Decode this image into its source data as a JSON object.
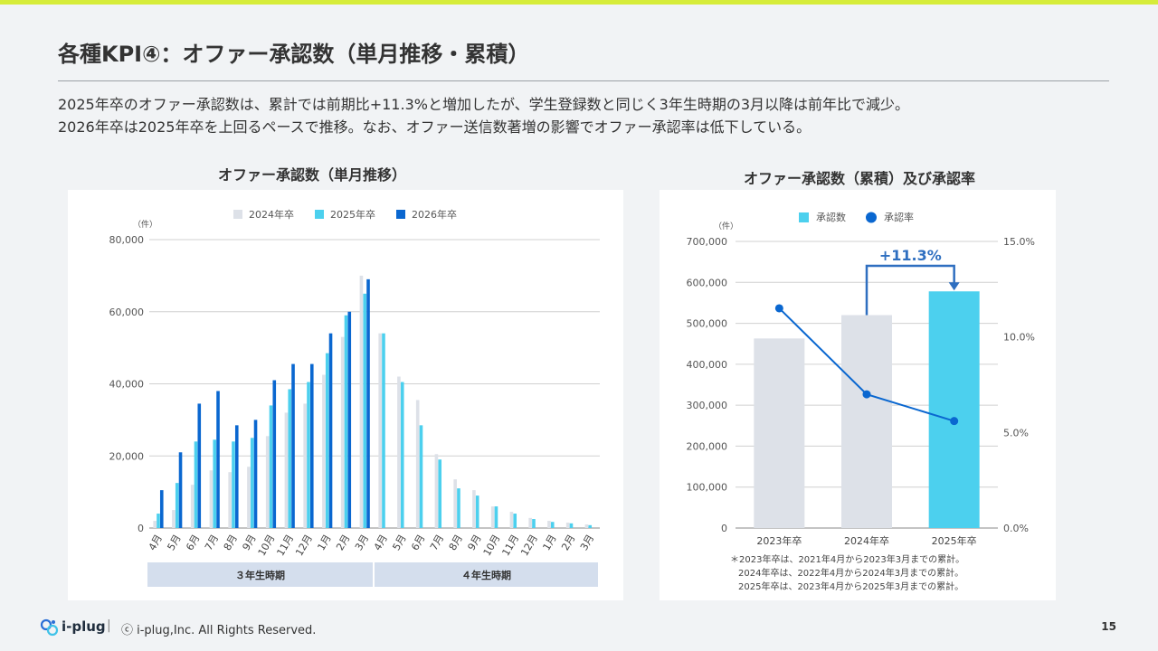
{
  "slide": {
    "title": "各種KPI④：オファー承認数（単月推移・累積）",
    "description": [
      "2025年卒のオファー承認数は、累計では前期比+11.3%と増加したが、学生登録数と同じく3年生時期の3月以降は前年比で減少。",
      "2026年卒は2025年卒を上回るペースで推移。なお、オファー送信数著増の影響でオファー承認率は低下している。"
    ],
    "left_chart_heading": "オファー承認数（単月推移）",
    "right_chart_heading": "オファー承認数（累積）及び承認率",
    "footer": {
      "brand": "i-plug",
      "separator": "|",
      "copyright": "ⓒ i-plug,Inc. All Rights Reserved.",
      "page": "15"
    },
    "colors": {
      "accent_bar": "#d6ec3a",
      "s2024": "#dde1e8",
      "s2025": "#4cd0ee",
      "s2026": "#0a67d0",
      "period_band": "#d4deed"
    }
  },
  "chart_data": [
    {
      "type": "bar",
      "ylabel": "（件）",
      "ylim": [
        0,
        80000
      ],
      "yticks": [
        "0",
        "20,000",
        "40,000",
        "60,000",
        "80,000"
      ],
      "ytick_values": [
        0,
        20000,
        40000,
        60000,
        80000
      ],
      "categories": [
        "4月",
        "5月",
        "6月",
        "7月",
        "8月",
        "9月",
        "10月",
        "11月",
        "12月",
        "1月",
        "2月",
        "3月",
        "4月",
        "5月",
        "6月",
        "7月",
        "8月",
        "9月",
        "10月",
        "11月",
        "12月",
        "1月",
        "2月",
        "3月"
      ],
      "series": [
        {
          "name": "2024年卒",
          "color": "#dde1e8",
          "values": [
            2000,
            5000,
            12000,
            16000,
            15500,
            17000,
            25500,
            32000,
            34500,
            42500,
            53000,
            70000,
            54000,
            42000,
            35500,
            20500,
            13500,
            10500,
            6000,
            4500,
            2800,
            2000,
            1500,
            1000
          ]
        },
        {
          "name": "2025年卒",
          "color": "#4cd0ee",
          "values": [
            4000,
            12500,
            24000,
            24500,
            24000,
            25000,
            34000,
            38500,
            40500,
            48500,
            59000,
            65000,
            54000,
            40500,
            28500,
            19000,
            11000,
            9000,
            6000,
            4000,
            2500,
            1700,
            1300,
            800
          ]
        },
        {
          "name": "2026年卒",
          "color": "#0a67d0",
          "values": [
            10500,
            21000,
            34500,
            38000,
            28500,
            30000,
            41000,
            45500,
            45500,
            54000,
            60000,
            69000,
            null,
            null,
            null,
            null,
            null,
            null,
            null,
            null,
            null,
            null,
            null,
            null
          ]
        }
      ],
      "periods": [
        {
          "label": "３年生時期",
          "from": 0,
          "to": 11
        },
        {
          "label": "４年生時期",
          "from": 12,
          "to": 23
        }
      ],
      "legend": "top"
    },
    {
      "type": "bar",
      "ylabel": "（件）",
      "ylim": [
        0,
        700000
      ],
      "yticks": [
        "0",
        "100,000",
        "200,000",
        "300,000",
        "400,000",
        "500,000",
        "600,000",
        "700,000"
      ],
      "ytick_values": [
        0,
        100000,
        200000,
        300000,
        400000,
        500000,
        600000,
        700000
      ],
      "y2lim": [
        0,
        15
      ],
      "y2ticks": [
        "0.0%",
        "5.0%",
        "10.0%",
        "15.0%"
      ],
      "y2tick_values": [
        0,
        5,
        10,
        15
      ],
      "categories": [
        "2023年卒",
        "2024年卒",
        "2025年卒"
      ],
      "series": [
        {
          "name": "承認数",
          "type": "bar",
          "values": [
            463000,
            520000,
            578000
          ],
          "colors": [
            "#dde1e8",
            "#dde1e8",
            "#4cd0ee"
          ]
        },
        {
          "name": "承認率",
          "type": "line",
          "axis": "right",
          "color": "#0a67d0",
          "values": [
            11.5,
            7.0,
            5.6
          ]
        }
      ],
      "annotation": "+11.3%",
      "footnotes": [
        "＊2023年卒は、2021年4月から2023年3月までの累計。",
        "2024年卒は、2022年4月から2024年3月までの累計。",
        "2025年卒は、2023年4月から2025年3月までの累計。"
      ],
      "legend": "top"
    }
  ]
}
